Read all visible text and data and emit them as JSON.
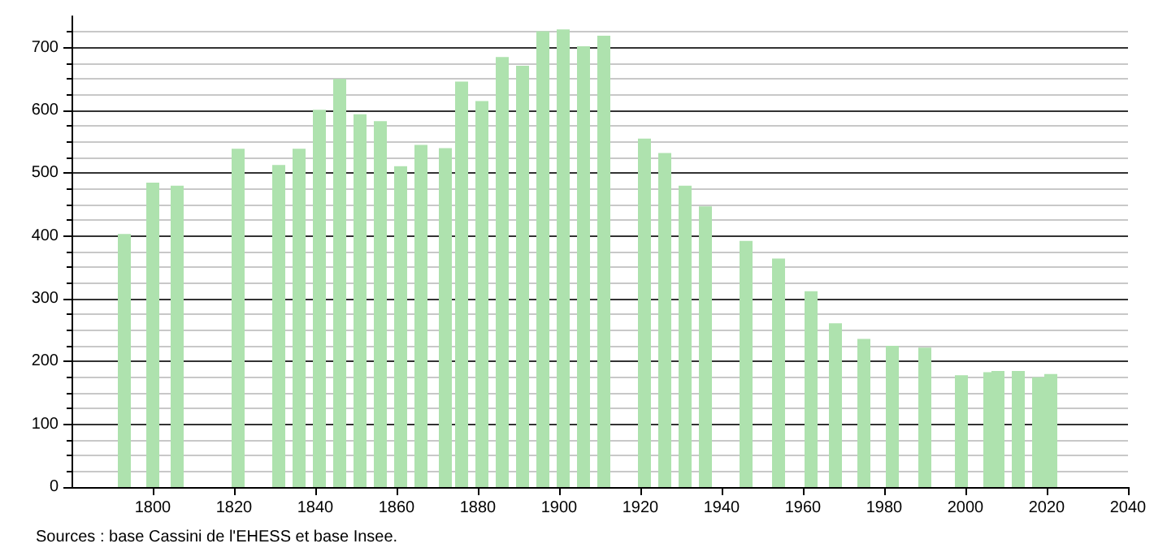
{
  "chart_data": {
    "type": "bar",
    "x": [
      1793,
      1800,
      1806,
      1821,
      1831,
      1836,
      1841,
      1846,
      1851,
      1856,
      1861,
      1866,
      1872,
      1876,
      1881,
      1886,
      1891,
      1896,
      1901,
      1906,
      1911,
      1921,
      1926,
      1931,
      1936,
      1946,
      1954,
      1962,
      1968,
      1975,
      1982,
      1990,
      1999,
      2006,
      2008,
      2013,
      2018,
      2021
    ],
    "values": [
      403,
      485,
      480,
      539,
      513,
      539,
      601,
      650,
      594,
      583,
      511,
      545,
      540,
      646,
      615,
      685,
      671,
      726,
      729,
      702,
      719,
      555,
      532,
      480,
      447,
      392,
      364,
      312,
      261,
      236,
      225,
      222,
      178,
      183,
      185,
      185,
      175,
      180
    ],
    "color": "#aee2ae",
    "xlim": [
      1780,
      2040
    ],
    "xticks": [
      1800,
      1820,
      1840,
      1860,
      1880,
      1900,
      1920,
      1940,
      1960,
      1980,
      2000,
      2020,
      2040
    ],
    "ylim": [
      0,
      750
    ],
    "yticks": [
      0,
      100,
      200,
      300,
      400,
      500,
      600,
      700
    ],
    "grid": "y",
    "annotations": [
      "Sources : base Cassini de l'EHESS et base Insee."
    ]
  }
}
